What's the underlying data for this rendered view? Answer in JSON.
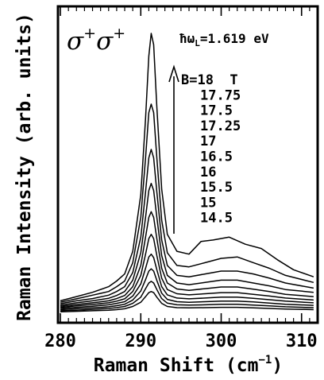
{
  "chart_data": {
    "type": "line",
    "xlabel": "Raman Shift (cm",
    "xlabel_sup": "−1",
    "xlabel_suffix": ")",
    "ylabel": "Raman Intensity (arb. units)",
    "xlim": [
      279.7,
      312.0
    ],
    "ylim": [
      0,
      1.0
    ],
    "xticks": [
      280,
      290,
      300,
      310
    ],
    "polarization_label": "σ",
    "polarization_sup": "+",
    "laser_label_prefix": "ħω",
    "laser_label_sub": "L",
    "laser_label_value": "=1.619 eV",
    "field_labels": [
      "B=18  T",
      "17.75",
      "17.5",
      "17.25",
      "17",
      "16.5",
      "16",
      "15.5",
      "15",
      "14.5"
    ],
    "series": [
      {
        "name": "B=18  T",
        "values": [
          [
            280.0,
            0.055
          ],
          [
            282,
            0.07
          ],
          [
            284,
            0.085
          ],
          [
            286,
            0.105
          ],
          [
            287,
            0.125
          ],
          [
            288,
            0.15
          ],
          [
            289,
            0.23
          ],
          [
            290,
            0.43
          ],
          [
            290.6,
            0.7
          ],
          [
            291.0,
            0.92
          ],
          [
            291.3,
            1.0
          ],
          [
            291.6,
            0.96
          ],
          [
            292.0,
            0.74
          ],
          [
            292.6,
            0.45
          ],
          [
            293.3,
            0.29
          ],
          [
            294.5,
            0.23
          ],
          [
            296,
            0.22
          ],
          [
            297.5,
            0.265
          ],
          [
            299,
            0.27
          ],
          [
            301,
            0.28
          ],
          [
            303,
            0.255
          ],
          [
            305,
            0.24
          ],
          [
            307,
            0.2
          ],
          [
            309,
            0.165
          ],
          [
            311.5,
            0.14
          ]
        ]
      },
      {
        "name": "17.75",
        "values": [
          [
            280.0,
            0.05
          ],
          [
            282,
            0.062
          ],
          [
            284,
            0.075
          ],
          [
            286,
            0.088
          ],
          [
            287,
            0.105
          ],
          [
            288,
            0.125
          ],
          [
            289,
            0.19
          ],
          [
            290,
            0.35
          ],
          [
            290.6,
            0.56
          ],
          [
            291.0,
            0.72
          ],
          [
            291.3,
            0.75
          ],
          [
            291.6,
            0.72
          ],
          [
            292.0,
            0.56
          ],
          [
            292.6,
            0.34
          ],
          [
            293.3,
            0.225
          ],
          [
            294.5,
            0.18
          ],
          [
            296,
            0.175
          ],
          [
            298,
            0.19
          ],
          [
            300,
            0.205
          ],
          [
            302,
            0.21
          ],
          [
            304,
            0.19
          ],
          [
            306,
            0.17
          ],
          [
            308,
            0.145
          ],
          [
            311.5,
            0.12
          ]
        ]
      },
      {
        "name": "17.5",
        "values": [
          [
            280.0,
            0.045
          ],
          [
            282,
            0.055
          ],
          [
            284,
            0.063
          ],
          [
            286,
            0.075
          ],
          [
            287,
            0.088
          ],
          [
            288,
            0.105
          ],
          [
            289,
            0.155
          ],
          [
            290,
            0.28
          ],
          [
            290.6,
            0.44
          ],
          [
            291.0,
            0.56
          ],
          [
            291.3,
            0.59
          ],
          [
            291.6,
            0.56
          ],
          [
            292.0,
            0.44
          ],
          [
            292.6,
            0.27
          ],
          [
            293.3,
            0.18
          ],
          [
            294.5,
            0.145
          ],
          [
            296,
            0.14
          ],
          [
            298,
            0.15
          ],
          [
            300,
            0.16
          ],
          [
            302,
            0.16
          ],
          [
            304,
            0.15
          ],
          [
            306,
            0.135
          ],
          [
            308,
            0.118
          ],
          [
            311.5,
            0.1
          ]
        ]
      },
      {
        "name": "17.25",
        "values": [
          [
            280.0,
            0.04
          ],
          [
            282,
            0.048
          ],
          [
            284,
            0.055
          ],
          [
            286,
            0.064
          ],
          [
            287,
            0.074
          ],
          [
            288,
            0.088
          ],
          [
            289,
            0.128
          ],
          [
            290,
            0.225
          ],
          [
            290.6,
            0.35
          ],
          [
            291.0,
            0.445
          ],
          [
            291.3,
            0.47
          ],
          [
            291.6,
            0.445
          ],
          [
            292.0,
            0.35
          ],
          [
            292.6,
            0.215
          ],
          [
            293.3,
            0.145
          ],
          [
            294.5,
            0.118
          ],
          [
            296,
            0.112
          ],
          [
            298,
            0.12
          ],
          [
            300,
            0.128
          ],
          [
            302,
            0.128
          ],
          [
            304,
            0.118
          ],
          [
            306,
            0.108
          ],
          [
            308,
            0.095
          ],
          [
            311.5,
            0.085
          ]
        ]
      },
      {
        "name": "17",
        "values": [
          [
            280.0,
            0.036
          ],
          [
            282,
            0.042
          ],
          [
            284,
            0.048
          ],
          [
            286,
            0.055
          ],
          [
            287,
            0.063
          ],
          [
            288,
            0.074
          ],
          [
            289,
            0.105
          ],
          [
            290,
            0.18
          ],
          [
            290.6,
            0.28
          ],
          [
            291.0,
            0.35
          ],
          [
            291.3,
            0.37
          ],
          [
            291.6,
            0.35
          ],
          [
            292.0,
            0.275
          ],
          [
            292.6,
            0.17
          ],
          [
            293.3,
            0.118
          ],
          [
            294.5,
            0.097
          ],
          [
            296,
            0.092
          ],
          [
            298,
            0.098
          ],
          [
            300,
            0.104
          ],
          [
            302,
            0.104
          ],
          [
            304,
            0.096
          ],
          [
            306,
            0.088
          ],
          [
            308,
            0.078
          ],
          [
            311.5,
            0.07
          ]
        ]
      },
      {
        "name": "16.5",
        "values": [
          [
            280.0,
            0.032
          ],
          [
            282,
            0.037
          ],
          [
            284,
            0.042
          ],
          [
            286,
            0.048
          ],
          [
            287,
            0.054
          ],
          [
            288,
            0.062
          ],
          [
            289,
            0.088
          ],
          [
            290,
            0.145
          ],
          [
            290.6,
            0.22
          ],
          [
            291.0,
            0.275
          ],
          [
            291.3,
            0.29
          ],
          [
            291.6,
            0.275
          ],
          [
            292.0,
            0.215
          ],
          [
            292.6,
            0.135
          ],
          [
            293.3,
            0.095
          ],
          [
            294.5,
            0.08
          ],
          [
            296,
            0.076
          ],
          [
            298,
            0.08
          ],
          [
            300,
            0.084
          ],
          [
            302,
            0.084
          ],
          [
            304,
            0.078
          ],
          [
            306,
            0.072
          ],
          [
            308,
            0.065
          ],
          [
            311.5,
            0.058
          ]
        ]
      },
      {
        "name": "16",
        "values": [
          [
            280.0,
            0.028
          ],
          [
            282,
            0.032
          ],
          [
            284,
            0.036
          ],
          [
            286,
            0.041
          ],
          [
            287,
            0.046
          ],
          [
            288,
            0.052
          ],
          [
            289,
            0.072
          ],
          [
            290,
            0.115
          ],
          [
            290.6,
            0.17
          ],
          [
            291.0,
            0.21
          ],
          [
            291.3,
            0.22
          ],
          [
            291.6,
            0.208
          ],
          [
            292.0,
            0.165
          ],
          [
            292.6,
            0.105
          ],
          [
            293.3,
            0.076
          ],
          [
            294.5,
            0.065
          ],
          [
            296,
            0.062
          ],
          [
            298,
            0.065
          ],
          [
            300,
            0.068
          ],
          [
            302,
            0.068
          ],
          [
            304,
            0.064
          ],
          [
            306,
            0.059
          ],
          [
            308,
            0.054
          ],
          [
            311.5,
            0.048
          ]
        ]
      },
      {
        "name": "15.5",
        "values": [
          [
            280.0,
            0.024
          ],
          [
            282,
            0.027
          ],
          [
            284,
            0.03
          ],
          [
            286,
            0.034
          ],
          [
            287,
            0.038
          ],
          [
            288,
            0.043
          ],
          [
            289,
            0.058
          ],
          [
            290,
            0.09
          ],
          [
            290.6,
            0.13
          ],
          [
            291.0,
            0.16
          ],
          [
            291.3,
            0.168
          ],
          [
            291.6,
            0.16
          ],
          [
            292.0,
            0.127
          ],
          [
            292.6,
            0.082
          ],
          [
            293.3,
            0.06
          ],
          [
            294.5,
            0.052
          ],
          [
            296,
            0.05
          ],
          [
            298,
            0.052
          ],
          [
            300,
            0.054
          ],
          [
            302,
            0.054
          ],
          [
            304,
            0.051
          ],
          [
            306,
            0.047
          ],
          [
            308,
            0.043
          ],
          [
            311.5,
            0.039
          ]
        ]
      },
      {
        "name": "15",
        "values": [
          [
            280.0,
            0.02
          ],
          [
            282,
            0.022
          ],
          [
            284,
            0.025
          ],
          [
            286,
            0.028
          ],
          [
            287,
            0.031
          ],
          [
            288,
            0.035
          ],
          [
            289,
            0.046
          ],
          [
            290,
            0.068
          ],
          [
            290.6,
            0.098
          ],
          [
            291.0,
            0.118
          ],
          [
            291.3,
            0.124
          ],
          [
            291.6,
            0.118
          ],
          [
            292.0,
            0.095
          ],
          [
            292.6,
            0.063
          ],
          [
            293.3,
            0.047
          ],
          [
            294.5,
            0.041
          ],
          [
            296,
            0.04
          ],
          [
            298,
            0.041
          ],
          [
            300,
            0.043
          ],
          [
            302,
            0.043
          ],
          [
            304,
            0.04
          ],
          [
            306,
            0.037
          ],
          [
            308,
            0.034
          ],
          [
            311.5,
            0.031
          ]
        ]
      },
      {
        "name": "14.5",
        "values": [
          [
            280.0,
            0.016
          ],
          [
            282,
            0.018
          ],
          [
            284,
            0.02
          ],
          [
            286,
            0.022
          ],
          [
            287,
            0.024
          ],
          [
            288,
            0.027
          ],
          [
            289,
            0.035
          ],
          [
            290,
            0.05
          ],
          [
            290.6,
            0.07
          ],
          [
            291.0,
            0.084
          ],
          [
            291.3,
            0.088
          ],
          [
            291.6,
            0.084
          ],
          [
            292.0,
            0.068
          ],
          [
            292.6,
            0.046
          ],
          [
            293.3,
            0.035
          ],
          [
            294.5,
            0.031
          ],
          [
            296,
            0.03
          ],
          [
            298,
            0.031
          ],
          [
            300,
            0.032
          ],
          [
            302,
            0.032
          ],
          [
            304,
            0.03
          ],
          [
            306,
            0.028
          ],
          [
            308,
            0.026
          ],
          [
            311.5,
            0.024
          ]
        ]
      }
    ],
    "grid": false,
    "legend": "none"
  }
}
